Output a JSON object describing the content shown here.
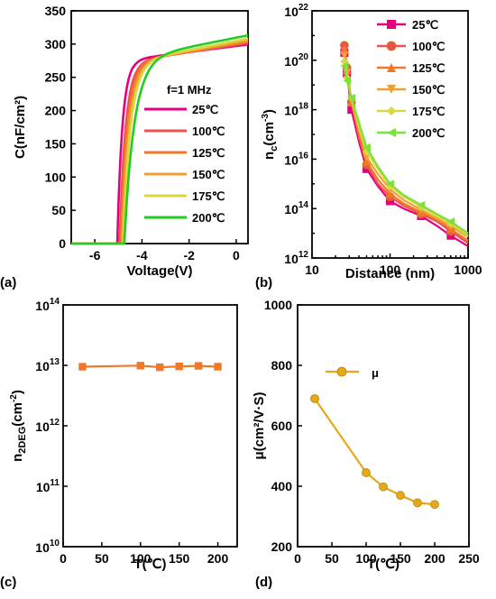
{
  "chart_data": [
    {
      "panel": "(a)",
      "type": "line",
      "xlabel": "Voltage(V)",
      "ylabel": "C(nF/cm²)",
      "xlim": [
        -7,
        0.5
      ],
      "ylim": [
        0,
        350
      ],
      "xticks": [
        -6,
        -4,
        -2,
        0
      ],
      "xtick_labels": [
        "-6",
        "-4",
        "-2",
        "0"
      ],
      "yticks": [
        0,
        50,
        100,
        150,
        200,
        250,
        300,
        350
      ],
      "ytick_labels": [
        "0",
        "50",
        "100",
        "150",
        "200",
        "250",
        "300",
        "350"
      ],
      "legend_title": "f=1 MHz",
      "legend_position": "right",
      "series": [
        {
          "name": "25℃",
          "color": "#e6007e",
          "vth": -5.05,
          "rise": 0.22,
          "plateau": 278,
          "slope": 4.5
        },
        {
          "name": "100℃",
          "color": "#f05050",
          "vth": -4.95,
          "rise": 0.26,
          "plateau": 276,
          "slope": 5.5
        },
        {
          "name": "125℃",
          "color": "#f07828",
          "vth": -4.9,
          "rise": 0.28,
          "plateau": 276,
          "slope": 6.0
        },
        {
          "name": "150℃",
          "color": "#f0a030",
          "vth": -4.85,
          "rise": 0.3,
          "plateau": 276,
          "slope": 6.5
        },
        {
          "name": "175℃",
          "color": "#d8d840",
          "vth": -4.8,
          "rise": 0.32,
          "plateau": 277,
          "slope": 7.0
        },
        {
          "name": "200℃",
          "color": "#22cc22",
          "vth": -4.75,
          "rise": 0.42,
          "plateau": 282,
          "slope": 7.0
        }
      ]
    },
    {
      "panel": "(b)",
      "type": "line",
      "xlabel": "Distance (nm)",
      "ylabel": "n",
      "ylabel_sub": "c",
      "ylabel_tail": "(cm",
      "ylabel_sup": "-3",
      "ylabel_end": ")",
      "xscale": "log",
      "yscale": "log",
      "xlim": [
        10,
        1000
      ],
      "ylim": [
        1000000000000.0,
        1e+22
      ],
      "xticks": [
        10,
        100,
        1000
      ],
      "xtick_labels": [
        "10",
        "100",
        "1000"
      ],
      "yticks": [
        12,
        14,
        16,
        18,
        20,
        22
      ],
      "ytick_base": "10",
      "legend_position": "top-right",
      "series": [
        {
          "name": "25℃",
          "color": "#e6007e",
          "marker": "square",
          "x": [
            26,
            28,
            32,
            40,
            50,
            70,
            100,
            150,
            250,
            400,
            600,
            1000
          ],
          "y": [
            2e+20,
            3e+19,
            1e+18,
            5e+16,
            4000000000000000.0,
            800000000000000.0,
            200000000000000.0,
            100000000000000.0,
            50000000000000.0,
            20000000000000.0,
            8000000000000.0,
            3000000000000.0
          ]
        },
        {
          "name": "100℃",
          "color": "#f05050",
          "marker": "circle",
          "x": [
            26,
            28,
            32,
            40,
            50,
            70,
            100,
            150,
            250,
            400,
            600,
            1000
          ],
          "y": [
            4e+20,
            5e+19,
            2e+18,
            8e+16,
            6000000000000000.0,
            1000000000000000.0,
            300000000000000.0,
            130000000000000.0,
            60000000000000.0,
            30000000000000.0,
            12000000000000.0,
            4000000000000.0
          ]
        },
        {
          "name": "125℃",
          "color": "#f07828",
          "marker": "triangle-up",
          "x": [
            26,
            28,
            32,
            40,
            50,
            70,
            100,
            150,
            250,
            400,
            600,
            1000
          ],
          "y": [
            3e+20,
            4e+19,
            2e+18,
            1e+17,
            8000000000000000.0,
            1500000000000000.0,
            400000000000000.0,
            160000000000000.0,
            70000000000000.0,
            35000000000000.0,
            15000000000000.0,
            5000000000000.0
          ]
        },
        {
          "name": "150℃",
          "color": "#f0a030",
          "marker": "triangle-down",
          "x": [
            26,
            28,
            32,
            40,
            50,
            70,
            100,
            150,
            250,
            400,
            600,
            1000
          ],
          "y": [
            1.5e+20,
            3e+19,
            2.5e+18,
            1.5e+17,
            1.2e+16,
            2500000000000000.0,
            600000000000000.0,
            220000000000000.0,
            90000000000000.0,
            40000000000000.0,
            20000000000000.0,
            7000000000000.0
          ]
        },
        {
          "name": "175℃",
          "color": "#d8d840",
          "marker": "diamond",
          "x": [
            26,
            28,
            32,
            40,
            50,
            70,
            100,
            150,
            250,
            400,
            600,
            1000
          ],
          "y": [
            9e+19,
            2e+19,
            3e+18,
            2e+17,
            2e+16,
            4000000000000000.0,
            800000000000000.0,
            300000000000000.0,
            120000000000000.0,
            50000000000000.0,
            25000000000000.0,
            8000000000000.0
          ]
        },
        {
          "name": "200℃",
          "color": "#7ee03a",
          "marker": "triangle-left",
          "x": [
            26,
            28,
            32,
            40,
            50,
            70,
            100,
            150,
            250,
            400,
            600,
            1000
          ],
          "y": [
            6e+19,
            1.5e+19,
            3e+18,
            3e+17,
            3e+16,
            5000000000000000.0,
            1000000000000000.0,
            350000000000000.0,
            140000000000000.0,
            60000000000000.0,
            30000000000000.0,
            10000000000000.0
          ]
        }
      ]
    },
    {
      "panel": "(c)",
      "type": "line",
      "xlabel": "T(℃)",
      "ylabel": "n",
      "ylabel_sub": "2DEG",
      "ylabel_tail": "(cm",
      "ylabel_sup": "-2",
      "ylabel_end": ")",
      "yscale": "log",
      "xlim": [
        0,
        225
      ],
      "ylim": [
        10000000000.0,
        100000000000000.0
      ],
      "xticks": [
        0,
        50,
        100,
        150,
        200
      ],
      "xtick_labels": [
        "0",
        "50",
        "100",
        "150",
        "200"
      ],
      "yticks": [
        10,
        11,
        12,
        13,
        14
      ],
      "ytick_base": "10",
      "series": [
        {
          "color": "#f07828",
          "marker": "square",
          "x": [
            25,
            100,
            125,
            150,
            175,
            200
          ],
          "y": [
            9500000000000.0,
            9900000000000.0,
            9300000000000.0,
            9600000000000.0,
            9800000000000.0,
            9500000000000.0
          ]
        }
      ]
    },
    {
      "panel": "(d)",
      "type": "line",
      "xlabel": "T(℃)",
      "ylabel": "μ(cm²/V·S)",
      "xlim": [
        0,
        250
      ],
      "ylim": [
        200,
        1000
      ],
      "xticks": [
        0,
        50,
        100,
        150,
        200,
        250
      ],
      "xtick_labels": [
        "0",
        "50",
        "100",
        "150",
        "200",
        "250"
      ],
      "yticks": [
        200,
        400,
        600,
        800,
        1000
      ],
      "ytick_labels": [
        "200",
        "400",
        "600",
        "800",
        "1000"
      ],
      "legend_position": "top-left",
      "series": [
        {
          "name": "μ",
          "color": "#e6a818",
          "marker": "circle",
          "x": [
            25,
            100,
            125,
            150,
            175,
            200
          ],
          "y": [
            690,
            445,
            398,
            370,
            345,
            340
          ]
        }
      ]
    }
  ]
}
